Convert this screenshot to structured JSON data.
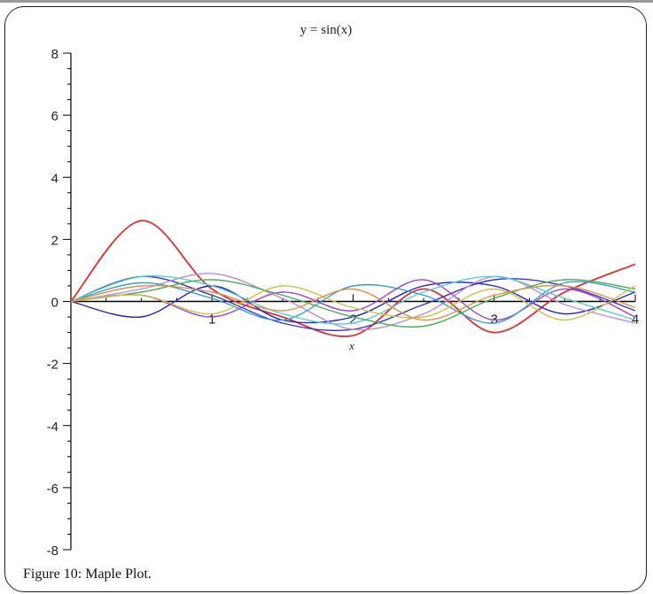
{
  "figure": {
    "caption": "Figure 10: Maple Plot."
  },
  "chart_data": {
    "type": "line",
    "title": "y = sin(x)",
    "xlabel": "x",
    "ylabel": "",
    "xlim": [
      0,
      4
    ],
    "ylim": [
      -8,
      8
    ],
    "x_ticks": [
      "1",
      "2",
      "3",
      "4"
    ],
    "y_ticks": [
      "8",
      "6",
      "4",
      "2",
      "0",
      "-2",
      "-4",
      "-6",
      "-8"
    ],
    "grid": false,
    "x": [
      0,
      0.5,
      1,
      1.5,
      2,
      2.5,
      3,
      3.5,
      4
    ],
    "series": [
      {
        "color": "#e03030",
        "values": [
          0.0,
          2.6,
          0.4,
          -0.5,
          -1.1,
          0.4,
          -1.0,
          0.3,
          1.2
        ]
      },
      {
        "color": "#2020d0",
        "values": [
          0.0,
          -0.5,
          0.5,
          -0.6,
          -0.5,
          0.5,
          0.5,
          -0.4,
          0.3
        ]
      },
      {
        "color": "#3535c8",
        "values": [
          0.0,
          0.8,
          0.2,
          -0.7,
          -0.9,
          -0.1,
          0.7,
          0.5,
          -0.3
        ]
      },
      {
        "color": "#a040d0",
        "values": [
          0.0,
          0.2,
          -0.5,
          0.3,
          -0.3,
          0.7,
          -0.6,
          0.4,
          -0.5
        ]
      },
      {
        "color": "#c088d8",
        "values": [
          0.0,
          0.4,
          0.9,
          0.1,
          -0.9,
          -0.4,
          0.8,
          -0.1,
          -0.7
        ]
      },
      {
        "color": "#30a0d0",
        "values": [
          0.0,
          0.6,
          0.1,
          -0.6,
          0.5,
          0.2,
          -0.7,
          0.6,
          0.3
        ]
      },
      {
        "color": "#50d0d0",
        "values": [
          0.0,
          0.8,
          0.5,
          -0.4,
          -0.7,
          0.3,
          0.8,
          0.1,
          -0.6
        ]
      },
      {
        "color": "#40b050",
        "values": [
          0.0,
          0.3,
          0.7,
          0.2,
          -0.5,
          -0.8,
          0.1,
          0.7,
          0.4
        ]
      },
      {
        "color": "#d0c040",
        "values": [
          0.0,
          0.2,
          -0.4,
          0.5,
          -0.2,
          -0.5,
          0.4,
          -0.6,
          0.5
        ]
      },
      {
        "color": "#e09040",
        "values": [
          0.0,
          0.5,
          0.3,
          -0.3,
          0.4,
          -0.6,
          0.2,
          0.5,
          -0.2
        ]
      }
    ]
  }
}
